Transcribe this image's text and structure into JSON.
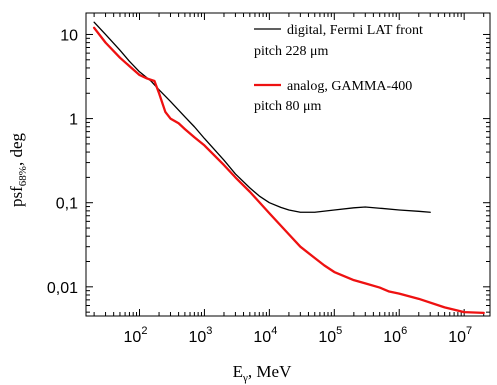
{
  "chart_data": {
    "type": "line",
    "title": "",
    "xlabel": {
      "main": "E",
      "sub": "γ",
      "unit": ", MeV"
    },
    "ylabel": {
      "main": "psf",
      "sub": "68%",
      "unit": ", deg"
    },
    "x_scale": "log",
    "y_scale": "log",
    "xlim": [
      15,
      25000000
    ],
    "ylim": [
      0.0045,
      18
    ],
    "x_ticks": [
      {
        "value": 100,
        "base": "10",
        "exp": "2"
      },
      {
        "value": 1000,
        "base": "10",
        "exp": "3"
      },
      {
        "value": 10000,
        "base": "10",
        "exp": "4"
      },
      {
        "value": 100000,
        "base": "10",
        "exp": "5"
      },
      {
        "value": 1000000,
        "base": "10",
        "exp": "6"
      },
      {
        "value": 10000000,
        "base": "10",
        "exp": "7"
      }
    ],
    "y_ticks": [
      {
        "value": 10,
        "label": "10"
      },
      {
        "value": 1,
        "label": "1"
      },
      {
        "value": 0.1,
        "label": "0,1"
      },
      {
        "value": 0.01,
        "label": "0,01"
      }
    ],
    "grid": false,
    "legend_position": "top-right",
    "series": [
      {
        "name": "digital, Fermi LAT front",
        "name_line2": "pitch 228 μm",
        "color": "#000000",
        "x": [
          20,
          30,
          50,
          70,
          100,
          150,
          200,
          300,
          500,
          700,
          1000,
          2000,
          3000,
          5000,
          7000,
          10000,
          15000,
          20000,
          30000,
          50000,
          100000,
          200000,
          300000,
          500000,
          1000000,
          2000000,
          3000000
        ],
        "y": [
          14,
          10,
          6.5,
          4.8,
          3.6,
          2.8,
          2.2,
          1.6,
          1.05,
          0.8,
          0.58,
          0.32,
          0.22,
          0.15,
          0.12,
          0.1,
          0.088,
          0.082,
          0.077,
          0.077,
          0.082,
          0.087,
          0.089,
          0.086,
          0.082,
          0.079,
          0.077
        ]
      },
      {
        "name": "analog, GAMMA-400",
        "name_line2": "pitch 80 μm",
        "color": "#ee1111",
        "x": [
          20,
          30,
          50,
          70,
          100,
          130,
          170,
          200,
          250,
          300,
          400,
          500,
          700,
          1000,
          2000,
          3000,
          5000,
          10000,
          20000,
          30000,
          50000,
          70000,
          100000,
          200000,
          300000,
          500000,
          700000,
          1000000,
          2000000,
          5000000,
          10000000,
          20000000
        ],
        "y": [
          12,
          8,
          5.3,
          4.2,
          3.3,
          3.0,
          2.8,
          2.0,
          1.2,
          1.0,
          0.88,
          0.75,
          0.6,
          0.48,
          0.28,
          0.2,
          0.135,
          0.075,
          0.042,
          0.03,
          0.022,
          0.018,
          0.015,
          0.012,
          0.011,
          0.0098,
          0.0088,
          0.0083,
          0.0072,
          0.0057,
          0.005,
          0.0049
        ]
      }
    ]
  }
}
